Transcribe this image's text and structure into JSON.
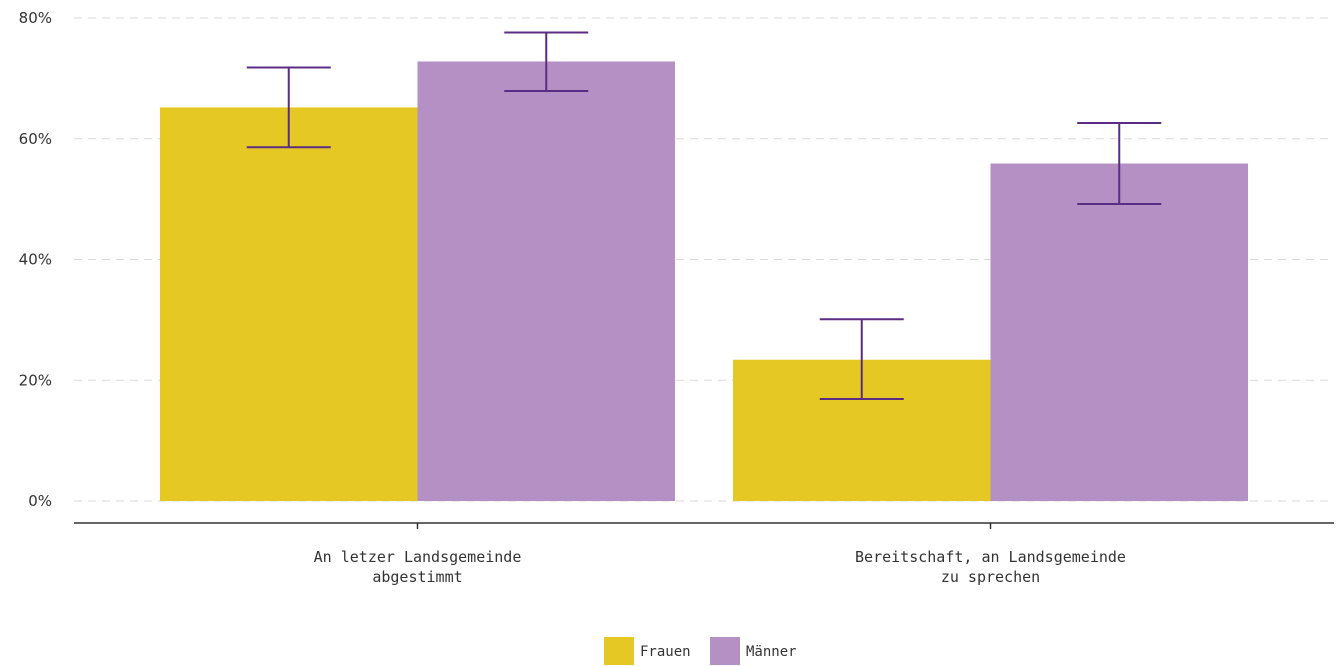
{
  "chart_data": {
    "type": "bar",
    "categories": [
      [
        "An letzer Landsgemeinde",
        "abgestimmt"
      ],
      [
        "Bereitschaft, an Landsgemeinde",
        "zu sprechen"
      ]
    ],
    "series": [
      {
        "name": "Frauen",
        "color": "#e6c824",
        "values": [
          65.2,
          23.4
        ],
        "error_low": [
          58.6,
          16.9
        ],
        "error_high": [
          71.8,
          30.1
        ]
      },
      {
        "name": "Männer",
        "color": "#b490c4",
        "values": [
          72.8,
          55.9
        ],
        "error_low": [
          67.9,
          49.2
        ],
        "error_high": [
          77.6,
          62.6
        ]
      }
    ],
    "y_ticks": [
      0,
      20,
      40,
      60,
      80
    ],
    "y_tick_labels": [
      "0%",
      "20%",
      "40%",
      "60%",
      "80%"
    ],
    "ylim": [
      0,
      80
    ],
    "grid": true,
    "error_bar_color": "#5b2c83",
    "legend_position": "bottom"
  }
}
